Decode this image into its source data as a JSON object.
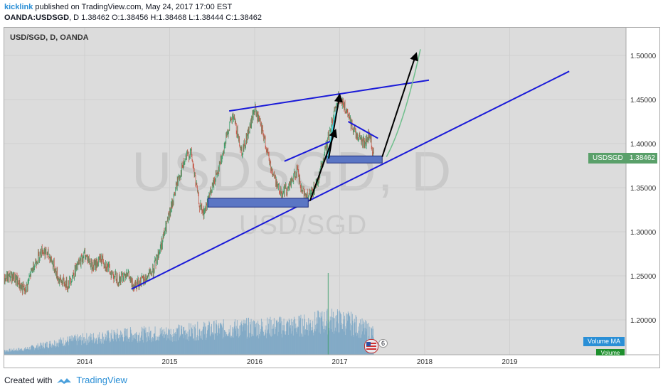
{
  "header": {
    "author": "kicklink",
    "published_text": " published on TradingView.com, May 24, 2017 17:00 EST",
    "symbol_full": "OANDA:USDSGD",
    "ohlc_text": ", D  1.38462 O:1.38456 H:1.38468 L:1.38444 C:1.38462"
  },
  "chart_label": "USD/SGD, D, OANDA",
  "watermark": {
    "main": "USDSGD, D",
    "sub": "USD/SGD"
  },
  "price_badge": {
    "symbol": "USDSGD",
    "value": "1.38462"
  },
  "volume_ma_label": "Volume MA",
  "volume_label": "Volume",
  "events": {
    "count": "6"
  },
  "footer": {
    "created_with": "Created with",
    "brand": "TradingView"
  },
  "colors": {
    "trendline": "#1a1ad8",
    "box_fill": "#5b76c4",
    "up": "#3d9e6b",
    "down": "#c45a4a",
    "volume": "#7aa6c4",
    "arrow": "#000000",
    "projection": "#6fbf8c"
  },
  "chart_data": {
    "type": "line",
    "title": "USD/SGD, D, OANDA",
    "yticks": [
      "1.50000",
      "1.45000",
      "1.40000",
      "1.35000",
      "1.30000",
      "1.25000",
      "1.20000"
    ],
    "xticks": [
      "2014",
      "2015",
      "2016",
      "2017",
      "2018",
      "2019"
    ],
    "ylim": [
      1.16,
      1.525
    ],
    "xlim": [
      2013.0,
      2020.3
    ],
    "last_close": 1.38462,
    "price_path": [
      [
        2013.0,
        1.245
      ],
      [
        2013.15,
        1.25
      ],
      [
        2013.3,
        1.232
      ],
      [
        2013.4,
        1.262
      ],
      [
        2013.5,
        1.28
      ],
      [
        2013.6,
        1.27
      ],
      [
        2013.7,
        1.245
      ],
      [
        2013.8,
        1.24
      ],
      [
        2013.9,
        1.258
      ],
      [
        2014.0,
        1.275
      ],
      [
        2014.1,
        1.26
      ],
      [
        2014.2,
        1.27
      ],
      [
        2014.3,
        1.255
      ],
      [
        2014.4,
        1.245
      ],
      [
        2014.5,
        1.255
      ],
      [
        2014.55,
        1.24
      ],
      [
        2014.7,
        1.245
      ],
      [
        2014.8,
        1.255
      ],
      [
        2014.9,
        1.285
      ],
      [
        2015.0,
        1.32
      ],
      [
        2015.1,
        1.36
      ],
      [
        2015.2,
        1.385
      ],
      [
        2015.25,
        1.39
      ],
      [
        2015.35,
        1.33
      ],
      [
        2015.4,
        1.32
      ],
      [
        2015.5,
        1.35
      ],
      [
        2015.6,
        1.38
      ],
      [
        2015.7,
        1.42
      ],
      [
        2015.75,
        1.43
      ],
      [
        2015.85,
        1.39
      ],
      [
        2015.95,
        1.42
      ],
      [
        2016.0,
        1.44
      ],
      [
        2016.1,
        1.41
      ],
      [
        2016.2,
        1.37
      ],
      [
        2016.3,
        1.345
      ],
      [
        2016.4,
        1.35
      ],
      [
        2016.5,
        1.37
      ],
      [
        2016.55,
        1.345
      ],
      [
        2016.65,
        1.34
      ],
      [
        2016.75,
        1.36
      ],
      [
        2016.85,
        1.4
      ],
      [
        2016.95,
        1.44
      ],
      [
        2017.0,
        1.455
      ],
      [
        2017.1,
        1.43
      ],
      [
        2017.2,
        1.41
      ],
      [
        2017.3,
        1.4
      ],
      [
        2017.35,
        1.41
      ],
      [
        2017.4,
        1.385
      ]
    ],
    "volume": {
      "series_name": "Volume",
      "approx_level": [
        [
          2013.0,
          0.05
        ],
        [
          2013.3,
          0.08
        ],
        [
          2013.7,
          0.18
        ],
        [
          2014.0,
          0.22
        ],
        [
          2014.5,
          0.28
        ],
        [
          2015.0,
          0.3
        ],
        [
          2015.5,
          0.35
        ],
        [
          2016.0,
          0.38
        ],
        [
          2016.5,
          0.4
        ],
        [
          2016.9,
          0.48
        ],
        [
          2017.1,
          0.45
        ],
        [
          2017.4,
          0.3
        ]
      ]
    },
    "annotations": {
      "support_trendline": [
        [
          2014.55,
          1.235
        ],
        [
          2019.7,
          1.482
        ]
      ],
      "resistance_trendline": [
        [
          2015.7,
          1.437
        ],
        [
          2018.05,
          1.472
        ]
      ],
      "channel_line_1": [
        [
          2016.35,
          1.38
        ],
        [
          2016.9,
          1.403
        ]
      ],
      "channel_line_2": [
        [
          2017.1,
          1.425
        ],
        [
          2017.45,
          1.406
        ]
      ],
      "support_box_1": [
        [
          2015.45,
          1.328
        ],
        [
          2016.63,
          1.338
        ]
      ],
      "support_box_2": [
        [
          2016.85,
          1.378
        ],
        [
          2017.5,
          1.386
        ]
      ],
      "arrows": [
        [
          [
            2016.65,
            1.335
          ],
          [
            2016.95,
            1.415
          ]
        ],
        [
          [
            2016.87,
            1.383
          ],
          [
            2017.0,
            1.455
          ]
        ],
        [
          [
            2017.5,
            1.385
          ],
          [
            2017.9,
            1.502
          ]
        ]
      ],
      "projection": [
        [
          2017.55,
          1.385
        ],
        [
          2017.95,
          1.507
        ]
      ]
    }
  }
}
